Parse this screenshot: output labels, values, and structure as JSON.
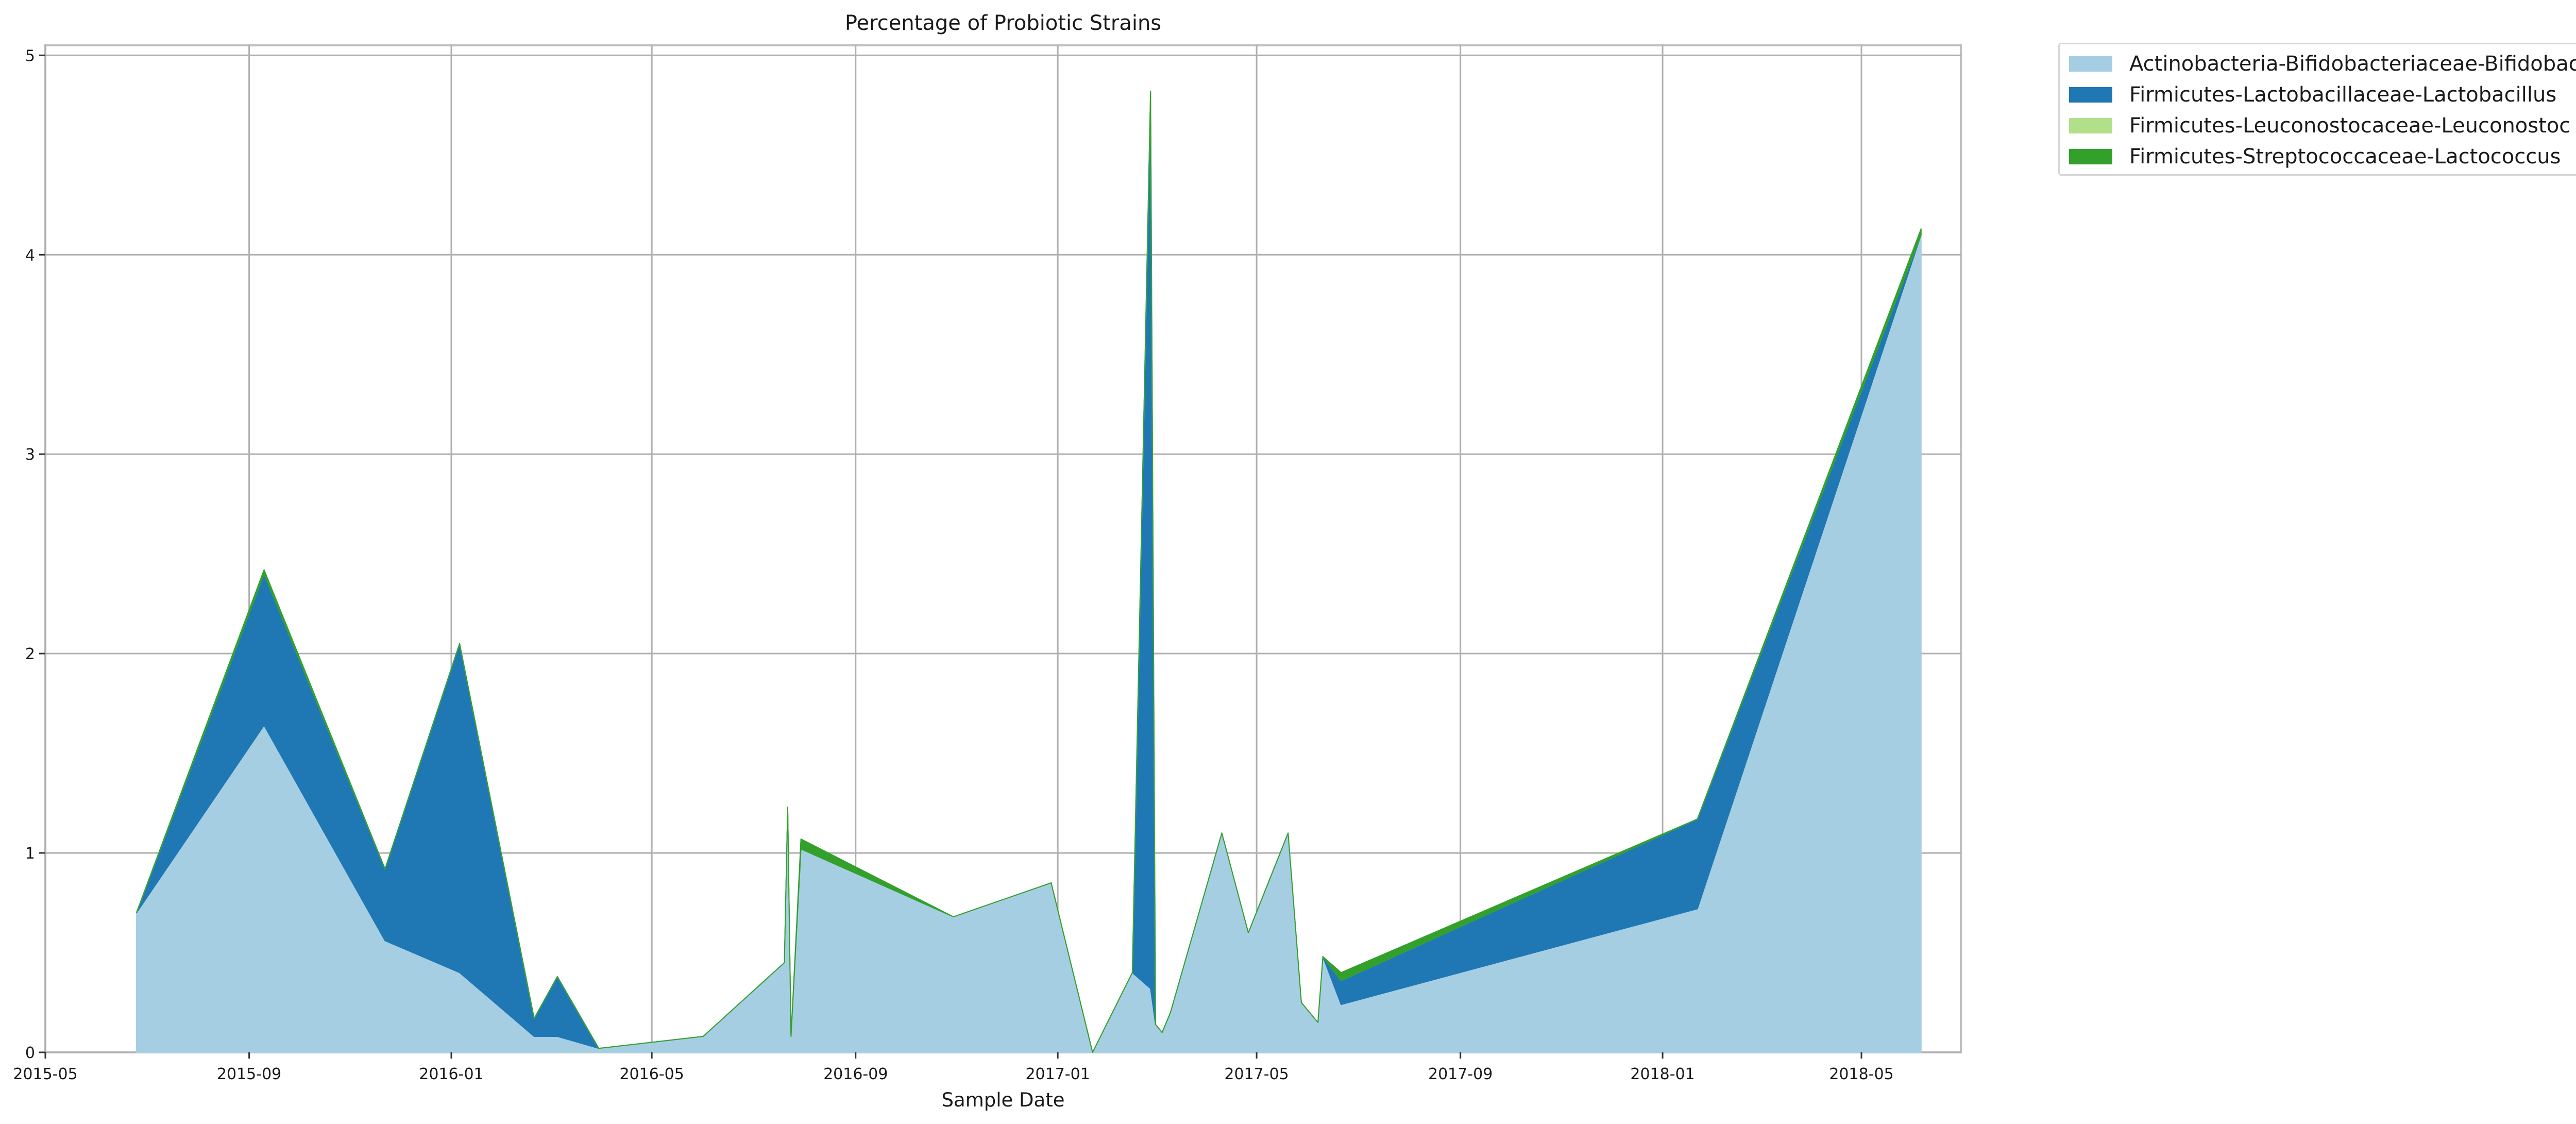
{
  "chart_data": {
    "type": "area",
    "stacked": true,
    "title": "Percentage of Probiotic Strains",
    "xlabel": "Sample Date",
    "ylabel": "",
    "x_ticks": [
      "2015-05",
      "2015-09",
      "2016-01",
      "2016-05",
      "2016-09",
      "2017-01",
      "2017-05",
      "2017-09",
      "2018-01",
      "2018-05"
    ],
    "y_ticks": [
      "0",
      "1",
      "2",
      "3",
      "4",
      "5"
    ],
    "ylim": [
      0,
      5.05
    ],
    "xlim": [
      "2015-05-01",
      "2018-06-30"
    ],
    "grid": true,
    "legend_position": "outside-top-right",
    "dates": [
      "2015-06-25",
      "2015-09-10",
      "2015-11-22",
      "2016-01-06",
      "2016-02-20",
      "2016-03-05",
      "2016-03-30",
      "2016-06-01",
      "2016-07-20",
      "2016-07-22",
      "2016-07-24",
      "2016-07-30",
      "2016-10-30",
      "2016-12-28",
      "2017-01-22",
      "2017-02-15",
      "2017-02-26",
      "2017-03-01",
      "2017-03-05",
      "2017-03-10",
      "2017-04-10",
      "2017-04-26",
      "2017-05-20",
      "2017-05-28",
      "2017-06-07",
      "2017-06-10",
      "2017-06-21",
      "2018-01-22",
      "2018-06-06"
    ],
    "series": [
      {
        "name": "Actinobacteria-Bifidobacteriaceae-Bifidobacterium",
        "color": "#a6cee3",
        "values": [
          0.7,
          1.64,
          0.56,
          0.4,
          0.08,
          0.08,
          0.02,
          0.08,
          0.45,
          1.23,
          0.08,
          1.02,
          0.68,
          0.85,
          0.0,
          0.4,
          0.32,
          0.14,
          0.1,
          0.2,
          1.1,
          0.6,
          1.1,
          0.25,
          0.15,
          0.48,
          0.24,
          0.72,
          4.1
        ]
      },
      {
        "name": "Firmicutes-Lactobacillaceae-Lactobacillus",
        "color": "#1f78b4",
        "values": [
          0.0,
          0.76,
          0.36,
          1.65,
          0.09,
          0.3,
          0.0,
          0.0,
          0.0,
          0.0,
          0.0,
          0.0,
          0.0,
          0.0,
          0.0,
          0.0,
          4.5,
          0.0,
          0.0,
          0.0,
          0.0,
          0.0,
          0.0,
          0.0,
          0.0,
          0.0,
          0.12,
          0.45,
          0.0
        ]
      },
      {
        "name": "Firmicutes-Leuconostocaceae-Leuconostoc",
        "color": "#b2df8a",
        "values": [
          0.0,
          0.0,
          0.0,
          0.0,
          0.0,
          0.0,
          0.0,
          0.0,
          0.0,
          0.0,
          0.0,
          0.0,
          0.0,
          0.0,
          0.0,
          0.0,
          0.0,
          0.0,
          0.0,
          0.0,
          0.0,
          0.0,
          0.0,
          0.0,
          0.0,
          0.0,
          0.0,
          0.0,
          0.0
        ]
      },
      {
        "name": "Firmicutes-Streptococcaceae-Lactococcus",
        "color": "#33a02c",
        "values": [
          0.0,
          0.02,
          0.0,
          0.0,
          0.0,
          0.0,
          0.0,
          0.0,
          0.0,
          0.0,
          0.0,
          0.05,
          0.0,
          0.0,
          0.0,
          0.0,
          0.0,
          0.0,
          0.0,
          0.0,
          0.0,
          0.0,
          0.0,
          0.0,
          0.0,
          0.0,
          0.04,
          0.0,
          0.03
        ]
      }
    ]
  }
}
